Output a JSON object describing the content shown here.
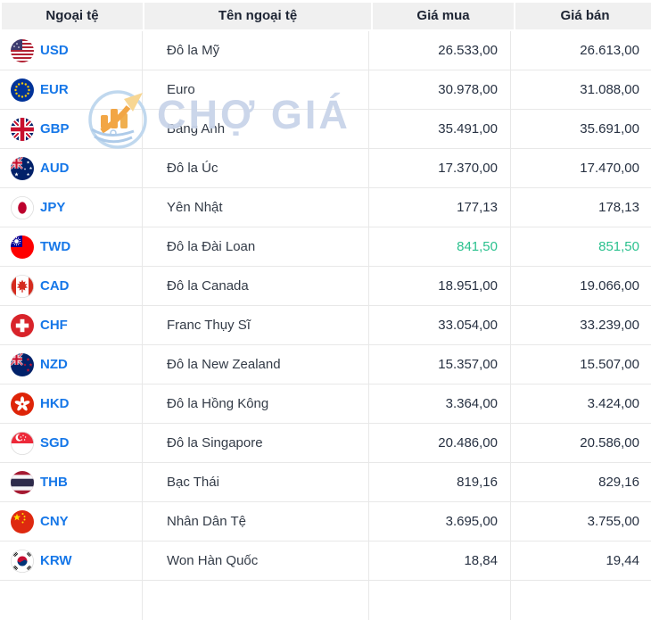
{
  "table": {
    "columns": [
      {
        "label": "Ngoại tệ"
      },
      {
        "label": "Tên ngoại tệ"
      },
      {
        "label": "Giá mua"
      },
      {
        "label": "Giá bán"
      }
    ],
    "rows": [
      {
        "code": "USD",
        "flag_icon": "usd-flag-icon",
        "name": "Đô la Mỹ",
        "buy": "26.533,00",
        "sell": "26.613,00",
        "highlight": false
      },
      {
        "code": "EUR",
        "flag_icon": "eur-flag-icon",
        "name": "Euro",
        "buy": "30.978,00",
        "sell": "31.088,00",
        "highlight": false
      },
      {
        "code": "GBP",
        "flag_icon": "gbp-flag-icon",
        "name": "Bảng Anh",
        "buy": "35.491,00",
        "sell": "35.691,00",
        "highlight": false
      },
      {
        "code": "AUD",
        "flag_icon": "aud-flag-icon",
        "name": "Đô la Úc",
        "buy": "17.370,00",
        "sell": "17.470,00",
        "highlight": false
      },
      {
        "code": "JPY",
        "flag_icon": "jpy-flag-icon",
        "name": "Yên Nhật",
        "buy": "177,13",
        "sell": "178,13",
        "highlight": false
      },
      {
        "code": "TWD",
        "flag_icon": "twd-flag-icon",
        "name": "Đô la Đài Loan",
        "buy": "841,50",
        "sell": "851,50",
        "highlight": true
      },
      {
        "code": "CAD",
        "flag_icon": "cad-flag-icon",
        "name": "Đô la Canada",
        "buy": "18.951,00",
        "sell": "19.066,00",
        "highlight": false
      },
      {
        "code": "CHF",
        "flag_icon": "chf-flag-icon",
        "name": "Franc Thụy Sĩ",
        "buy": "33.054,00",
        "sell": "33.239,00",
        "highlight": false
      },
      {
        "code": "NZD",
        "flag_icon": "nzd-flag-icon",
        "name": "Đô la New Zealand",
        "buy": "15.357,00",
        "sell": "15.507,00",
        "highlight": false
      },
      {
        "code": "HKD",
        "flag_icon": "hkd-flag-icon",
        "name": "Đô la Hồng Kông",
        "buy": "3.364,00",
        "sell": "3.424,00",
        "highlight": false
      },
      {
        "code": "SGD",
        "flag_icon": "sgd-flag-icon",
        "name": "Đô la Singapore",
        "buy": "20.486,00",
        "sell": "20.586,00",
        "highlight": false
      },
      {
        "code": "THB",
        "flag_icon": "thb-flag-icon",
        "name": "Bạc Thái",
        "buy": "819,16",
        "sell": "829,16",
        "highlight": false
      },
      {
        "code": "CNY",
        "flag_icon": "cny-flag-icon",
        "name": "Nhân Dân Tệ",
        "buy": "3.695,00",
        "sell": "3.755,00",
        "highlight": false
      },
      {
        "code": "KRW",
        "flag_icon": "krw-flag-icon",
        "name": "Won Hàn Quốc",
        "buy": "18,84",
        "sell": "19,44",
        "highlight": false
      }
    ]
  },
  "watermark": {
    "text": "CHỢ GIÁ",
    "logo_icon": "chogia-logo-icon"
  },
  "colors": {
    "header_bg": "#f0f0f0",
    "header_text": "#1d2433",
    "currency_code_blue": "#1677e8",
    "price_text": "#273142",
    "highlight_green": "#2ac18e",
    "row_border": "#e8e8e8",
    "watermark_text": "#c9d4e9",
    "watermark_orange": "#f2a23c"
  }
}
